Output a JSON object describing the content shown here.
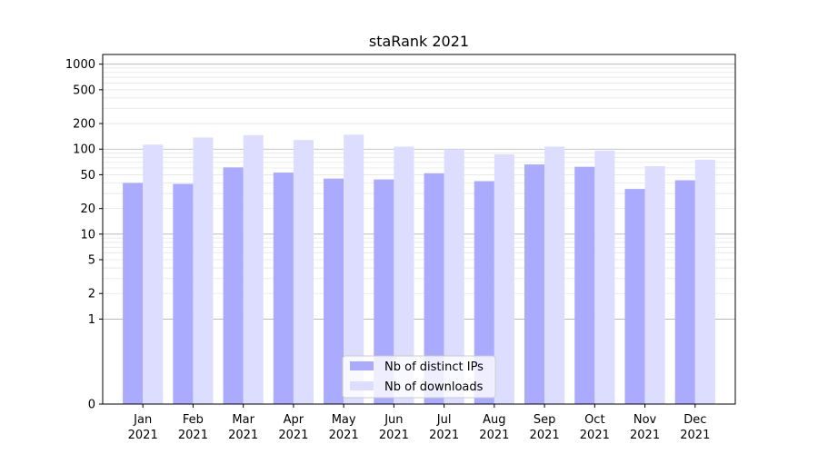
{
  "chart_data": {
    "type": "bar",
    "title": "staRank 2021",
    "xlabel": "",
    "ylabel": "",
    "yscale": "symlog",
    "ylim": [
      0,
      1300
    ],
    "yticks": [
      0,
      1,
      2,
      5,
      10,
      20,
      50,
      100,
      200,
      500,
      1000
    ],
    "ytick_labels": [
      "0",
      "1",
      "2",
      "5",
      "10",
      "20",
      "50",
      "100",
      "200",
      "500",
      "1000"
    ],
    "grid": true,
    "legend_position": "bottom-center",
    "categories": [
      "Jan\n2021",
      "Feb\n2021",
      "Mar\n2021",
      "Apr\n2021",
      "May\n2021",
      "Jun\n2021",
      "Jul\n2021",
      "Aug\n2021",
      "Sep\n2021",
      "Oct\n2021",
      "Nov\n2021",
      "Dec\n2021"
    ],
    "series": [
      {
        "name": "Nb of distinct IPs",
        "color": "#aaaaff",
        "values": [
          40,
          39,
          61,
          53,
          45,
          44,
          52,
          42,
          66,
          62,
          34,
          43
        ]
      },
      {
        "name": "Nb of downloads",
        "color": "#ddddff",
        "values": [
          113,
          137,
          146,
          128,
          148,
          107,
          100,
          87,
          107,
          96,
          63,
          75
        ]
      }
    ]
  }
}
